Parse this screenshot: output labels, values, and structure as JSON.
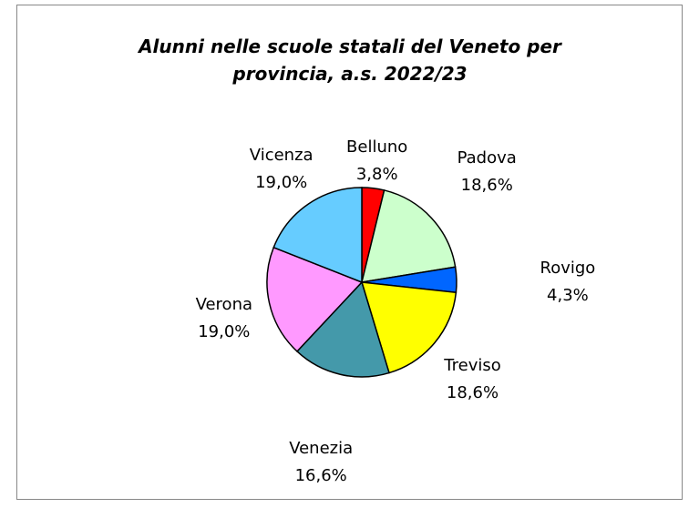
{
  "chart_data": {
    "type": "pie",
    "title": "Alunni nelle scuole statali del Veneto per provincia, a.s. 2022/23",
    "categories": [
      "Belluno",
      "Padova",
      "Rovigo",
      "Treviso",
      "Venezia",
      "Verona",
      "Vicenza"
    ],
    "values": [
      3.8,
      18.6,
      4.3,
      18.6,
      16.6,
      19.0,
      19.0
    ],
    "value_labels": [
      "3,8%",
      "18,6%",
      "4,3%",
      "18,6%",
      "16,6%",
      "19,0%",
      "19,0%"
    ],
    "colors": [
      "#ff0000",
      "#ccffcc",
      "#0066ff",
      "#ffff00",
      "#4499aa",
      "#ff99ff",
      "#66ccff"
    ]
  }
}
